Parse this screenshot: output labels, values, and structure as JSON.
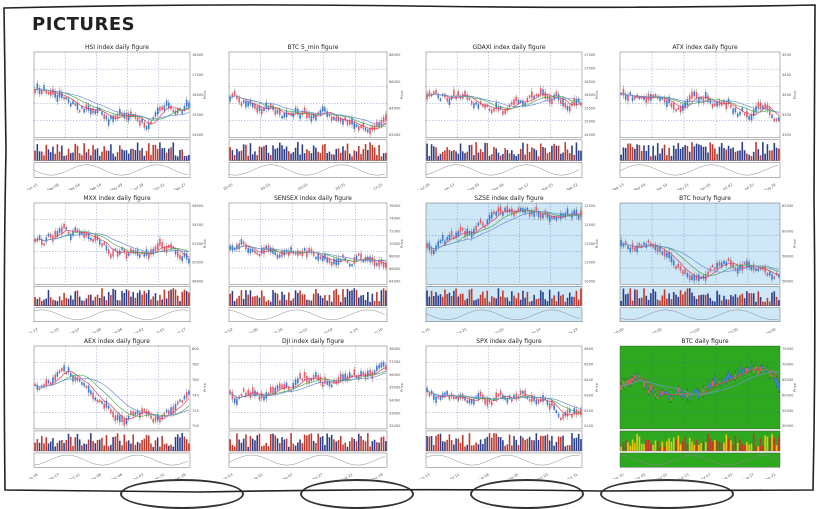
{
  "page": {
    "heading": "PICTURES"
  },
  "figures": [
    {
      "id": "hsi",
      "title": "HSI index daily figure",
      "bg": "#ffffff",
      "xticks": [
        "2023-Jun-15",
        "2023-Sep-08",
        "2023-Dec-04",
        "2024-Feb-14",
        "2024-May-09",
        "2024-Jul-29",
        "2024-Oct-21",
        "2024-Dec-27"
      ],
      "yticks": [
        "18000",
        "17000",
        "16000",
        "15000",
        "14000"
      ],
      "ylabel": "Price"
    },
    {
      "id": "btc5",
      "title": "BTC 5_min figure",
      "bg": "#ffffff",
      "xticks": [
        "Apr 21, 20:45",
        "Apr 22, 00:55",
        "Apr 22, 05:45",
        "Apr 22, 09:35",
        "Apr 22, 13:25"
      ],
      "yticks": [
        "68500",
        "66000",
        "64000",
        "62000"
      ],
      "ylabel": "Price"
    },
    {
      "id": "gdaxi",
      "title": "GDAXI index daily figure",
      "bg": "#ffffff",
      "xticks": [
        "2023-Jul-28",
        "2023-Jun-13",
        "2023-Aug-29",
        "2023-Nov-06",
        "2024-Jan-12",
        "2024-Mar-25",
        "2024-Feb-22"
      ],
      "yticks": [
        "17500",
        "17000",
        "16500",
        "16000",
        "15500",
        "15000",
        "14500"
      ],
      "ylabel": "Price"
    },
    {
      "id": "atx",
      "title": "ATX index daily figure",
      "bg": "#ffffff",
      "xticks": [
        "Feb 13",
        "Mar 04",
        "Apr 19",
        "May 21",
        "Jun 05",
        "Jul 02",
        "Jul 25",
        "Aug 29"
      ],
      "yticks": [
        "3500",
        "3450",
        "3400",
        "3350",
        "3300"
      ],
      "ylabel": "Price"
    },
    {
      "id": "mxx",
      "title": "MXX index daily figure",
      "bg": "#ffffff",
      "xticks": [
        "2021-Dec-12",
        "2022-Jan-10",
        "2022-Feb-07",
        "2022-Mar-08",
        "2022-Apr-06",
        "2022-May-02",
        "2022-Jun-01",
        "2022-Jun-27"
      ],
      "yticks": [
        "56000",
        "54000",
        "52000",
        "50000",
        "48000"
      ],
      "ylabel": "Price"
    },
    {
      "id": "sensex",
      "title": "SENSEX index daily figure",
      "bg": "#ffffff",
      "xticks": [
        "2023-Nov-02",
        "2023-Dec-06",
        "2024-Jan-16",
        "2024-Mar-01",
        "2024-Apr-02",
        "2024-May-14",
        "2024-Jun-10"
      ],
      "yticks": [
        "76000",
        "74000",
        "72000",
        "70000",
        "68000",
        "66000",
        "64000"
      ],
      "ylabel": "Price"
    },
    {
      "id": "szse",
      "title": "SZSE index daily figure",
      "bg": "#cfe8f7",
      "xticks": [
        "2022-Aug-16",
        "2022-Oct-25",
        "2023-Jan-03",
        "2023-Mar-14",
        "2023-May-23"
      ],
      "yticks": [
        "12500",
        "12000",
        "11500",
        "11000",
        "10500"
      ],
      "ylabel": "Price"
    },
    {
      "id": "btch",
      "title": "BTC hourly figure",
      "bg": "#cfe8f7",
      "xticks": [
        "Aug 10, 18:00",
        "Aug 12, 22:00",
        "Aug 15, 03:00",
        "Aug 15, 02:00",
        "Aug 17, 04:00"
      ],
      "yticks": [
        "62000",
        "60000",
        "58000",
        "56000"
      ],
      "ylabel": "Price"
    },
    {
      "id": "aex",
      "title": "AEX index daily figure",
      "bg": "#ffffff",
      "xticks": [
        "2023-Aug-16",
        "2023-Sep-13",
        "2023-Oct-11",
        "2023-Nov-08",
        "2023-Dec-06",
        "2024-Jan-03",
        "2024-Jan-31",
        "2024-Jan-26"
      ],
      "yticks": [
        "800",
        "780",
        "760",
        "740",
        "720",
        "700"
      ],
      "ylabel": "Price"
    },
    {
      "id": "dji",
      "title": "DJI index daily figure",
      "bg": "#ffffff",
      "xticks": [
        "2023-Jun-03",
        "2023-Aug-01",
        "2023-Sep-07",
        "2023-Oct-27",
        "2023-Nov-21",
        "2023-Dec-19"
      ],
      "yticks": [
        "38000",
        "37000",
        "36000",
        "35000",
        "34000",
        "33000",
        "32000"
      ],
      "ylabel": "Price"
    },
    {
      "id": "spx",
      "title": "SPX index daily figure",
      "bg": "#ffffff",
      "xticks": [
        "Jun 13",
        "Jul 11",
        "Aug 08",
        "Sep 05",
        "Oct 03",
        "Oct 31"
      ],
      "yticks": [
        "4600",
        "4500",
        "4400",
        "4300",
        "4200",
        "4100"
      ],
      "ylabel": "Price"
    },
    {
      "id": "btcd",
      "title": "BTC daily figure",
      "bg": "#2ea81f",
      "xticks": [
        "Mar 15",
        "Apr 05",
        "May 03",
        "Jun 13",
        "Jul 07",
        "Aug 03",
        "Aug 27",
        "Sep 21"
      ],
      "yticks": [
        "75000",
        "70000",
        "65000",
        "60000",
        "55000",
        "50000"
      ],
      "ylabel": "Price"
    }
  ]
}
